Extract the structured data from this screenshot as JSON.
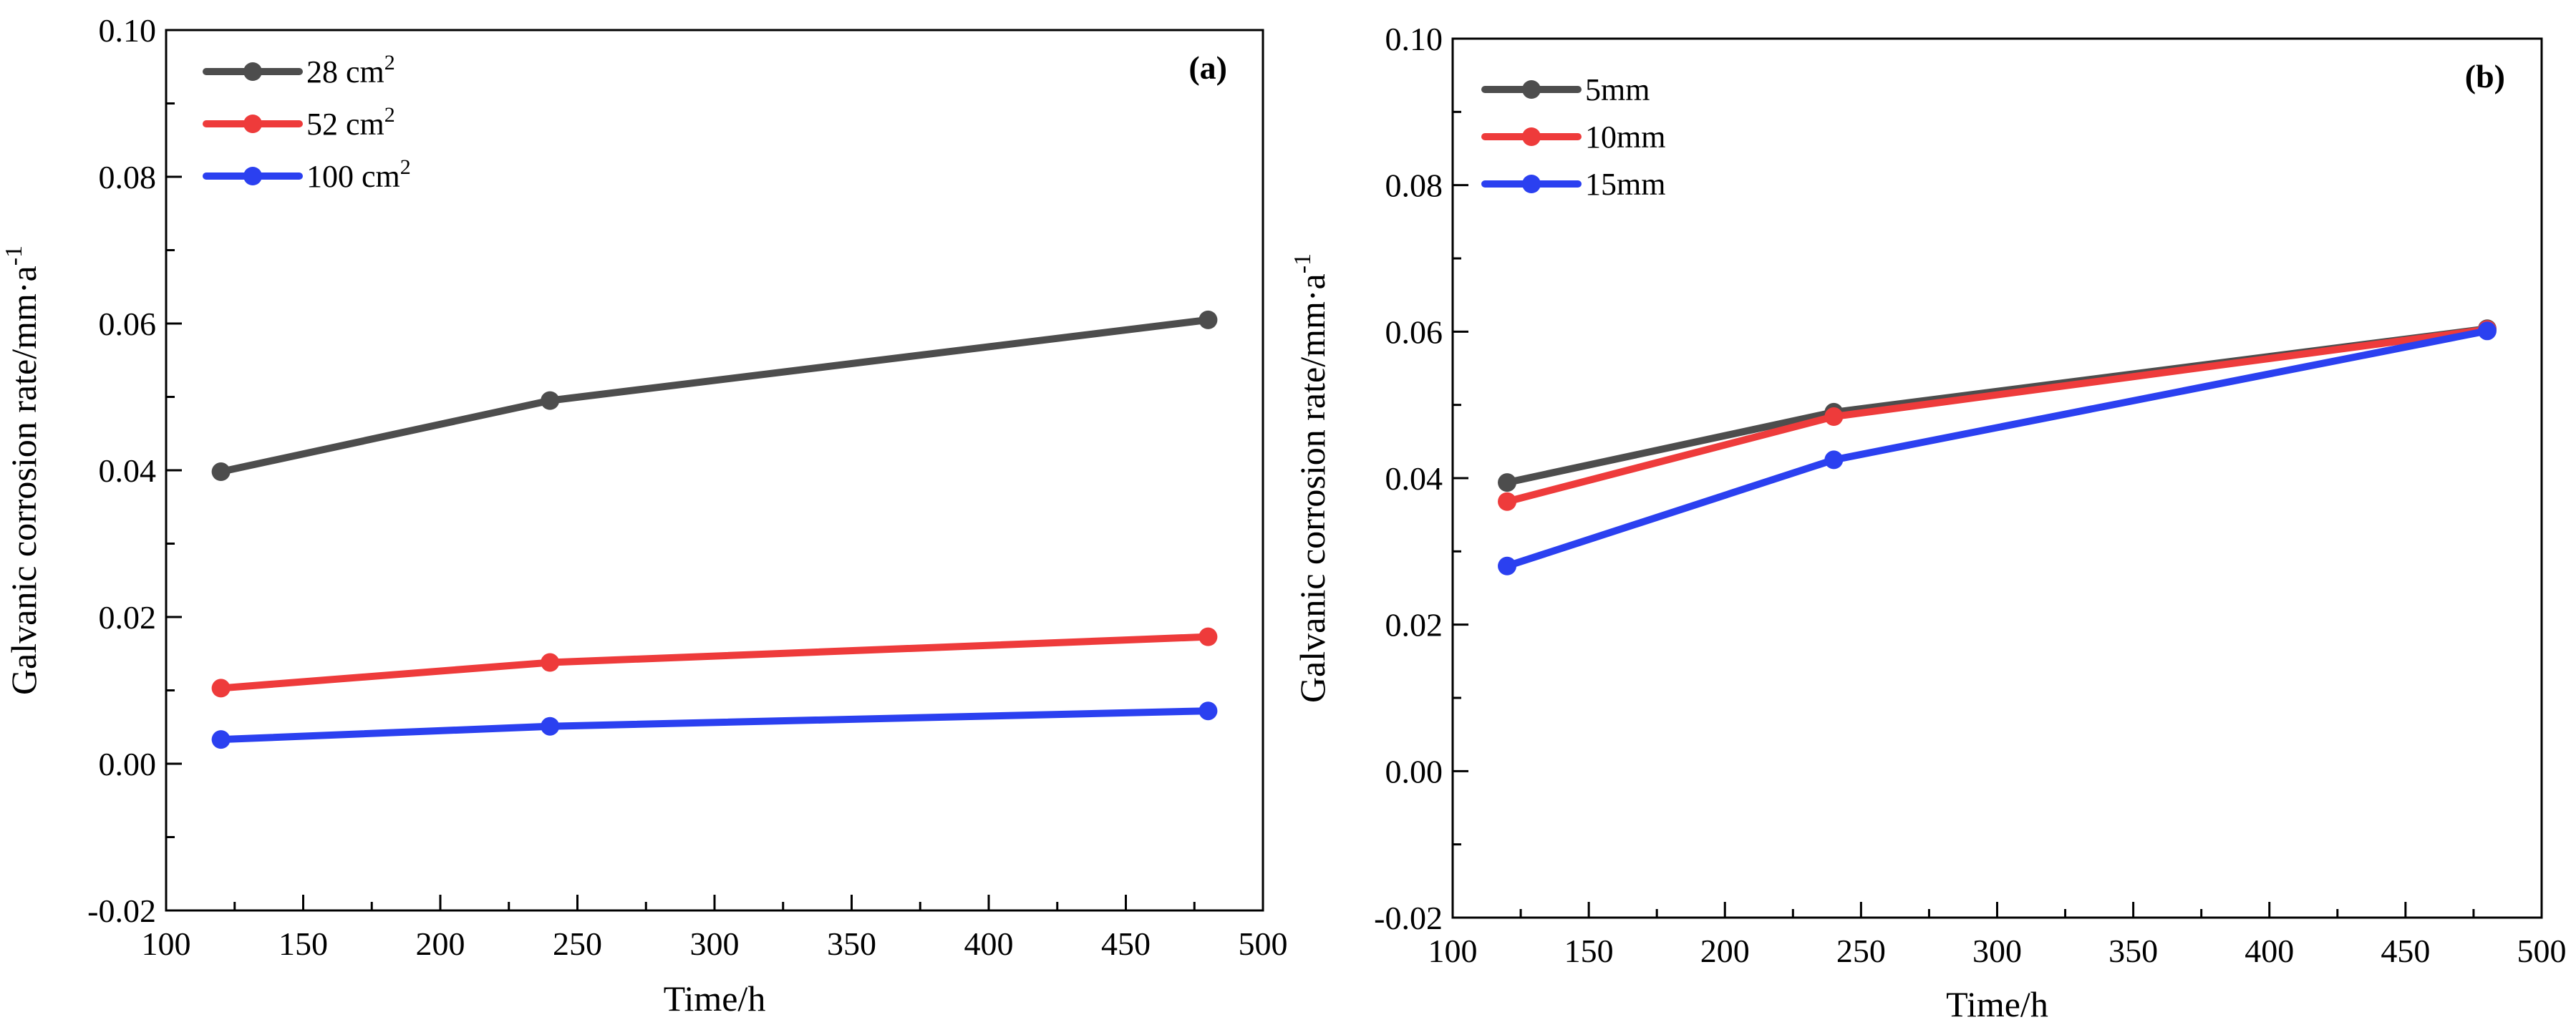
{
  "chart_data": [
    {
      "type": "line",
      "panel_label": "(a)",
      "xlabel": "Time/h",
      "ylabel": "Galvanic corrosion rate/mm·a",
      "ylabel_sup": "-1",
      "xlim": [
        100,
        500
      ],
      "ylim": [
        -0.02,
        0.1
      ],
      "xticks": [
        100,
        150,
        200,
        250,
        300,
        350,
        400,
        450,
        500
      ],
      "yticks": [
        -0.02,
        0.0,
        0.02,
        0.04,
        0.06,
        0.08,
        0.1
      ],
      "xtick_labels": [
        "100",
        "150",
        "200",
        "250",
        "300",
        "350",
        "400",
        "450",
        "500"
      ],
      "ytick_labels": [
        "-0.02",
        "0.00",
        "0.02",
        "0.04",
        "0.06",
        "0.08",
        "0.10"
      ],
      "x": [
        120,
        240,
        480
      ],
      "legend_position": "top-left",
      "series": [
        {
          "name": "28 cm",
          "sup": "2",
          "color": "#4d4d4d",
          "values": [
            0.0398,
            0.0495,
            0.0605
          ]
        },
        {
          "name": "52 cm",
          "sup": "2",
          "color": "#ee3b3b",
          "values": [
            0.0103,
            0.0138,
            0.0173
          ]
        },
        {
          "name": "100 cm",
          "sup": "2",
          "color": "#2b40f0",
          "values": [
            0.0033,
            0.0051,
            0.0072
          ]
        }
      ]
    },
    {
      "type": "line",
      "panel_label": "(b)",
      "xlabel": "Time/h",
      "ylabel": "Galvanic corrosion rate/mm·a",
      "ylabel_sup": "-1",
      "xlim": [
        100,
        500
      ],
      "ylim": [
        -0.02,
        0.1
      ],
      "xticks": [
        100,
        150,
        200,
        250,
        300,
        350,
        400,
        450,
        500
      ],
      "yticks": [
        -0.02,
        0.0,
        0.02,
        0.04,
        0.06,
        0.08,
        0.1
      ],
      "xtick_labels": [
        "100",
        "150",
        "200",
        "250",
        "300",
        "350",
        "400",
        "450",
        "500"
      ],
      "ytick_labels": [
        "-0.02",
        "0.00",
        "0.02",
        "0.04",
        "0.06",
        "0.08",
        "0.10"
      ],
      "x": [
        120,
        240,
        480
      ],
      "legend_position": "top-left",
      "series": [
        {
          "name": "5mm",
          "sup": "",
          "color": "#4d4d4d",
          "values": [
            0.0394,
            0.049,
            0.0604
          ]
        },
        {
          "name": "10mm",
          "sup": "",
          "color": "#ee3b3b",
          "values": [
            0.0368,
            0.0484,
            0.0603
          ]
        },
        {
          "name": "15mm",
          "sup": "",
          "color": "#2b40f0",
          "values": [
            0.028,
            0.0425,
            0.0601
          ]
        }
      ]
    }
  ]
}
